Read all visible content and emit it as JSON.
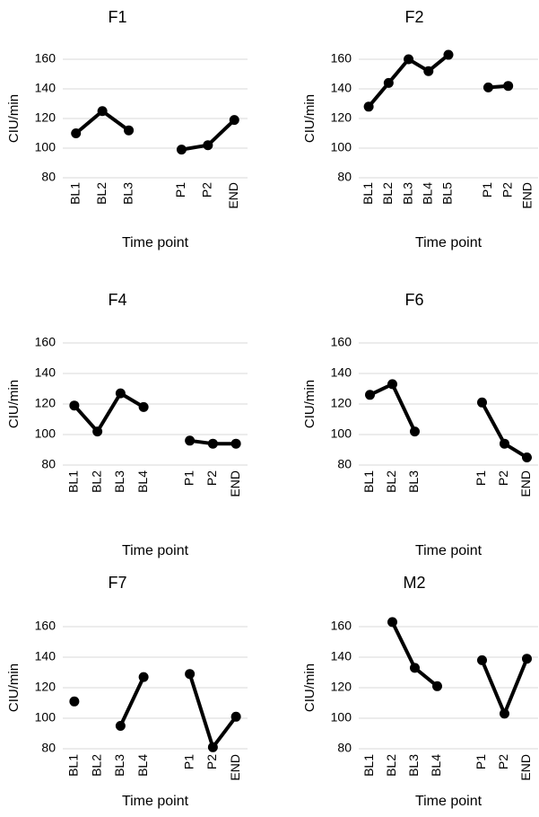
{
  "chart_data": [
    {
      "type": "line",
      "title": "F1",
      "xlabel": "Time point",
      "ylabel": "CIU/min",
      "ylim": [
        80,
        160
      ],
      "yticks": [
        80,
        100,
        120,
        140,
        160
      ],
      "grid": true,
      "categories": [
        "BL1",
        "BL2",
        "BL3",
        "",
        "P1",
        "P2",
        "END"
      ],
      "values": [
        110,
        125,
        112,
        null,
        99,
        102,
        119
      ]
    },
    {
      "type": "line",
      "title": "F2",
      "xlabel": "Time point",
      "ylabel": "CIU/min",
      "ylim": [
        80,
        160
      ],
      "yticks": [
        80,
        100,
        120,
        140,
        160
      ],
      "grid": true,
      "categories": [
        "BL1",
        "BL2",
        "BL3",
        "BL4",
        "BL5",
        "",
        "P1",
        "P2",
        "END"
      ],
      "values": [
        128,
        144,
        160,
        152,
        163,
        null,
        141,
        142,
        null
      ]
    },
    {
      "type": "line",
      "title": "F4",
      "xlabel": "Time point",
      "ylabel": "CIU/min",
      "ylim": [
        80,
        160
      ],
      "yticks": [
        80,
        100,
        120,
        140,
        160
      ],
      "grid": true,
      "categories": [
        "BL1",
        "BL2",
        "BL3",
        "BL4",
        "",
        "P1",
        "P2",
        "END"
      ],
      "values": [
        119,
        102,
        127,
        118,
        null,
        96,
        94,
        94
      ]
    },
    {
      "type": "line",
      "title": "F6",
      "xlabel": "Time point",
      "ylabel": "CIU/min",
      "ylim": [
        80,
        160
      ],
      "yticks": [
        80,
        100,
        120,
        140,
        160
      ],
      "grid": true,
      "categories": [
        "BL1",
        "BL2",
        "BL3",
        "",
        "",
        "P1",
        "P2",
        "END"
      ],
      "values": [
        126,
        133,
        102,
        null,
        null,
        121,
        94,
        85
      ]
    },
    {
      "type": "line",
      "title": "F7",
      "xlabel": "Time point",
      "ylabel": "CIU/min",
      "ylim": [
        80,
        160
      ],
      "yticks": [
        80,
        100,
        120,
        140,
        160
      ],
      "grid": true,
      "categories": [
        "BL1",
        "BL2",
        "BL3",
        "BL4",
        "",
        "P1",
        "P2",
        "END"
      ],
      "values": [
        111,
        null,
        95,
        127,
        null,
        129,
        81,
        101
      ]
    },
    {
      "type": "line",
      "title": "M2",
      "xlabel": "Time point",
      "ylabel": "CIU/min",
      "ylim": [
        80,
        160
      ],
      "yticks": [
        80,
        100,
        120,
        140,
        160
      ],
      "grid": true,
      "categories": [
        "BL1",
        "BL2",
        "BL3",
        "BL4",
        "",
        "P1",
        "P2",
        "END"
      ],
      "values": [
        null,
        163,
        133,
        121,
        null,
        138,
        103,
        139
      ]
    }
  ]
}
